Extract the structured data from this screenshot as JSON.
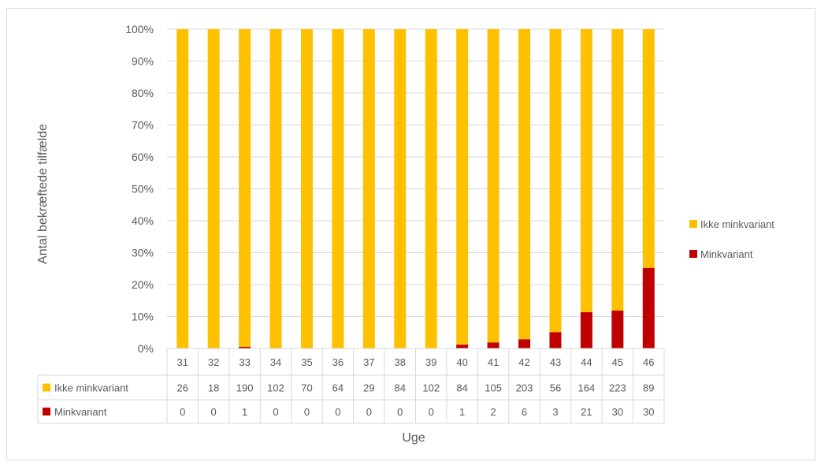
{
  "chart_data": {
    "type": "bar",
    "stacked": "percent",
    "xlabel": "Uge",
    "ylabel": "Antal bekræftede tilfælde",
    "ylim": [
      0,
      100
    ],
    "yticks": [
      "0%",
      "10%",
      "20%",
      "30%",
      "40%",
      "50%",
      "60%",
      "70%",
      "80%",
      "90%",
      "100%"
    ],
    "categories": [
      "31",
      "32",
      "33",
      "34",
      "35",
      "36",
      "37",
      "38",
      "39",
      "40",
      "41",
      "42",
      "43",
      "44",
      "45",
      "46"
    ],
    "series": [
      {
        "name": "Ikke minkvariant",
        "color": "#FFC000",
        "values": [
          26,
          18,
          190,
          102,
          70,
          64,
          29,
          84,
          102,
          84,
          105,
          203,
          56,
          164,
          223,
          89
        ]
      },
      {
        "name": "Minkvariant",
        "color": "#C00000",
        "values": [
          0,
          0,
          1,
          0,
          0,
          0,
          0,
          0,
          0,
          1,
          2,
          6,
          3,
          21,
          30,
          30
        ]
      }
    ],
    "legend": "right",
    "grid": true,
    "data_table": true
  }
}
